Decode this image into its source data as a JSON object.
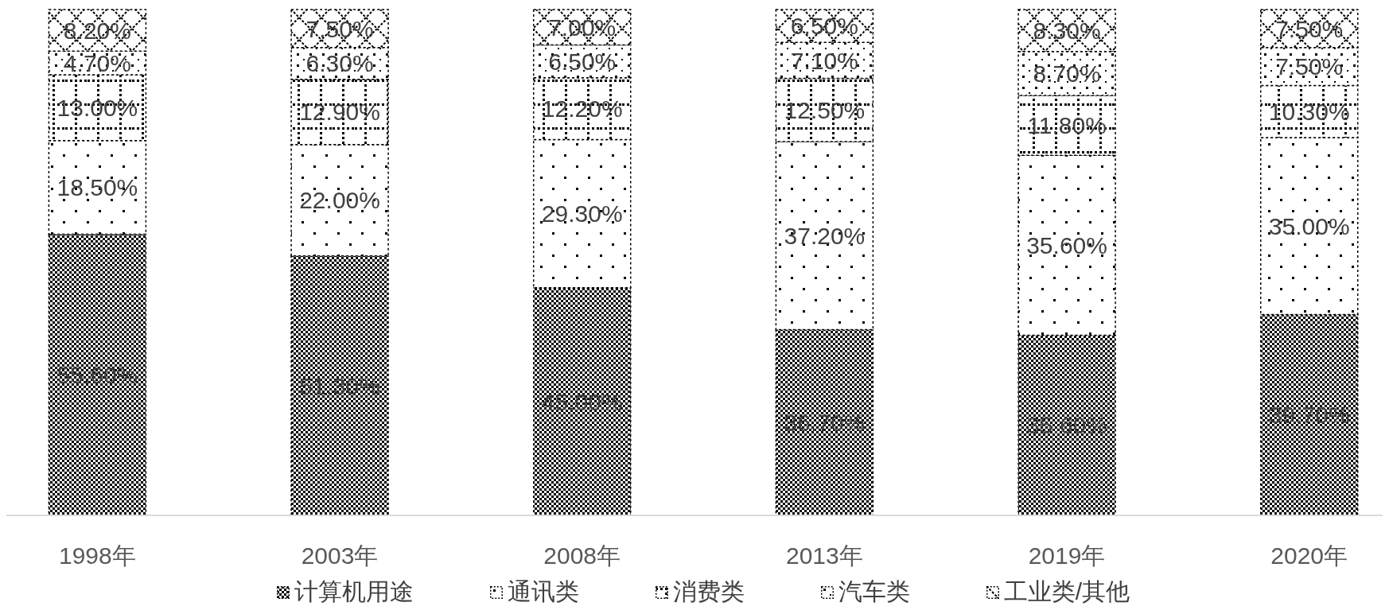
{
  "chart_data": {
    "type": "bar",
    "stacked": true,
    "legend": "bottom",
    "categories": [
      "1998年",
      "2003年",
      "2008年",
      "2013年",
      "2019年",
      "2020年"
    ],
    "series": [
      {
        "name": "计算机用途",
        "color": "#000000",
        "values": [
          55.6,
          51.3,
          45.0,
          36.7,
          35.6,
          39.7
        ],
        "value_labels": [
          "55.60%",
          "51.30%",
          "45.00%",
          "36.70%",
          "35.60%",
          "39.70%"
        ]
      },
      {
        "name": "通讯类",
        "color": "#000000",
        "values": [
          18.5,
          22.0,
          29.3,
          37.2,
          35.6,
          35.0
        ],
        "value_labels": [
          "18.50%",
          "22.00%",
          "29.30%",
          "37.20%",
          "35.60%",
          "35.00%"
        ]
      },
      {
        "name": "消费类",
        "color": "#000000",
        "values": [
          13.0,
          12.9,
          12.2,
          12.5,
          11.8,
          10.3
        ],
        "value_labels": [
          "13.00%",
          "12.90%",
          "12.20%",
          "12.50%",
          "11.80%",
          "10.30%"
        ]
      },
      {
        "name": "汽车类",
        "color": "#000000",
        "values": [
          4.7,
          6.3,
          6.5,
          7.1,
          8.7,
          7.5
        ],
        "value_labels": [
          "4.70%",
          "6.30%",
          "6.50%",
          "7.10%",
          "8.70%",
          "7.50%"
        ]
      },
      {
        "name": "工业类/其他",
        "color": "#000000",
        "values": [
          8.2,
          7.5,
          7.0,
          6.5,
          8.3,
          7.5
        ],
        "value_labels": [
          "8.20%",
          "7.50%",
          "7.00%",
          "6.50%",
          "8.30%",
          "7.50%"
        ]
      }
    ]
  }
}
